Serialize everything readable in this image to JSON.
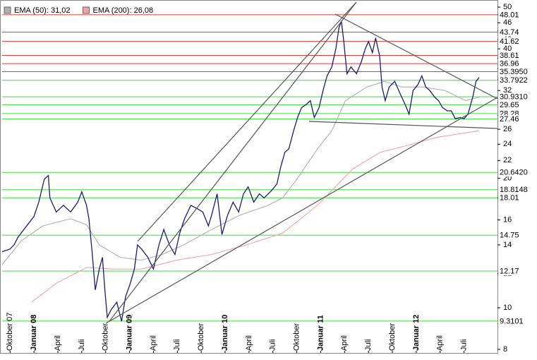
{
  "chart_data": {
    "type": "line",
    "log_scale": true,
    "ylim": [
      8,
      50.4
    ],
    "yticks": [
      8,
      10,
      12,
      14,
      16,
      18,
      20,
      22,
      24,
      26,
      28,
      30,
      32,
      34,
      36,
      38,
      40,
      42,
      44,
      46,
      48,
      50
    ],
    "xlim": [
      -1,
      61.2
    ],
    "xticks": [
      {
        "value": 0,
        "label": "Oktober 07"
      },
      {
        "value": 3,
        "label": "Januar 08"
      },
      {
        "value": 6,
        "label": "April"
      },
      {
        "value": 9,
        "label": "Juli"
      },
      {
        "value": 12,
        "label": "Oktober"
      },
      {
        "value": 15,
        "label": "Januar 09"
      },
      {
        "value": 18,
        "label": "April"
      },
      {
        "value": 21,
        "label": "Juli"
      },
      {
        "value": 24,
        "label": "Oktober"
      },
      {
        "value": 27,
        "label": "Januar 10"
      },
      {
        "value": 30,
        "label": "April"
      },
      {
        "value": 33,
        "label": "Juli"
      },
      {
        "value": 36,
        "label": "Oktober"
      },
      {
        "value": 39,
        "label": "Januar 11"
      },
      {
        "value": 42,
        "label": "April"
      },
      {
        "value": 45,
        "label": "Juli"
      },
      {
        "value": 48,
        "label": "Oktober"
      },
      {
        "value": 51,
        "label": "Januar 12"
      },
      {
        "value": 54,
        "label": "April"
      },
      {
        "value": 57,
        "label": "Juli"
      }
    ],
    "levels": [
      {
        "value": 48.01,
        "label": "48.01",
        "color": "#e03a3a"
      },
      {
        "value": 43.74,
        "label": "43.74",
        "color": "#e03a3a"
      },
      {
        "value": 41.62,
        "label": "41.62",
        "color": "#e03a3a"
      },
      {
        "value": 38.61,
        "label": "38.61",
        "color": "#e03a3a"
      },
      {
        "value": 36.96,
        "label": "36.96",
        "color": "#e03a3a"
      },
      {
        "value": 35.395,
        "label": "35.3950",
        "color": "#e03a3a"
      },
      {
        "value": 33.7922,
        "label": "33.7922",
        "color": "#3ade3a"
      },
      {
        "value": 30.931,
        "label": "30.9310",
        "color": "#3ade3a"
      },
      {
        "value": 29.65,
        "label": "29.65",
        "color": "#3ade3a"
      },
      {
        "value": 28.28,
        "label": "28.28",
        "color": "#3ade3a"
      },
      {
        "value": 27.46,
        "label": "27.46",
        "color": "#3ade3a"
      },
      {
        "value": 20.642,
        "label": "20.6420",
        "color": "#3ade3a"
      },
      {
        "value": 18.8148,
        "label": "18.8148",
        "color": "#3ade3a"
      },
      {
        "value": 18.01,
        "label": "18.01",
        "color": "#3ade3a"
      },
      {
        "value": 14.75,
        "label": "14.75",
        "color": "#3ade3a"
      },
      {
        "value": 12.17,
        "label": "12.17",
        "color": "#3ade3a"
      },
      {
        "value": 9.3101,
        "label": "9.3101",
        "color": "#3ade3a"
      }
    ],
    "series": [
      {
        "name": "EMA (50): 31,02",
        "color": "#b0b0b0",
        "x": [
          -1,
          1.4,
          4.1,
          7.6,
          9.6,
          11.2,
          13.8,
          16.5,
          19.1,
          21.8,
          25.3,
          28.8,
          32.4,
          34.2,
          36,
          38.6,
          40.4,
          42.1,
          44.8,
          47,
          49.2,
          51.9,
          54.6,
          57.2,
          59
        ],
        "values": [
          12.6,
          14.3,
          15.5,
          16.1,
          15.6,
          14.0,
          13.1,
          12.9,
          13.3,
          14.0,
          15.2,
          16.4,
          17.3,
          18.0,
          19.9,
          23.4,
          25.8,
          30.3,
          32.6,
          33.6,
          32.6,
          32.6,
          32.0,
          30.3,
          30.9
        ]
      },
      {
        "name": "EMA (200): 26,08",
        "color": "#f4a3a3",
        "x": [
          2.7,
          5.8,
          9.6,
          12.9,
          16.5,
          20.9,
          25.3,
          29.7,
          34.2,
          38.6,
          43,
          46.5,
          50.1,
          53.6,
          58.9
        ],
        "values": [
          10.3,
          11.4,
          12.4,
          12.3,
          12.3,
          12.9,
          13.3,
          14.0,
          14.9,
          17.3,
          21.0,
          23.0,
          23.9,
          24.9,
          25.8
        ]
      },
      {
        "color": "#1c1c70",
        "x": [
          -1,
          0,
          0.5,
          1,
          3,
          3.6,
          4.3,
          4.8,
          5,
          5.8,
          6.7,
          7.6,
          8.5,
          9,
          9.6,
          9.9,
          10.3,
          10.7,
          11.2,
          11.6,
          11.9,
          12.2,
          12.7,
          13.4,
          14,
          14.5,
          15.1,
          15.6,
          16,
          16.5,
          17.3,
          18,
          18.7,
          19.3,
          20,
          20.7,
          21.3,
          21.9,
          22.7,
          23.5,
          24.2,
          24.9,
          25.3,
          26,
          26.6,
          27.3,
          28,
          28.7,
          29.3,
          29.9,
          30.6,
          31.3,
          31.9,
          32.8,
          33.5,
          34,
          34.5,
          35,
          35.6,
          36.1,
          36.6,
          37.2,
          37.7,
          38.2,
          38.8,
          39.3,
          39.8,
          40.4,
          40.9,
          41.3,
          41.6,
          41.9,
          42.3,
          42.8,
          43.5,
          44.1,
          44.6,
          45,
          45.5,
          45.9,
          46.4,
          46.7,
          47.1,
          47.6,
          48.3,
          49,
          49.6,
          50.1,
          50.6,
          51.2,
          51.7,
          52.2,
          52.7,
          53.3,
          53.8,
          54.3,
          54.9,
          55.4,
          55.9,
          56.5,
          57,
          57.5,
          58.1,
          58.5,
          58.9
        ],
        "values": [
          13.5,
          13.7,
          14.0,
          14.6,
          16.3,
          17.6,
          19.9,
          20.3,
          18.0,
          16.7,
          17.3,
          16.7,
          17.6,
          18.6,
          17.3,
          16.1,
          13.5,
          11.0,
          12.3,
          13.1,
          11.0,
          9.5,
          9.9,
          10.3,
          9.3,
          10.6,
          11.4,
          12.3,
          14.0,
          13.7,
          13.1,
          12.3,
          14.0,
          15.2,
          14.0,
          13.3,
          14.9,
          16.1,
          17.3,
          17.0,
          16.7,
          15.5,
          16.4,
          18.4,
          14.8,
          16.4,
          17.6,
          16.7,
          18.4,
          19.1,
          17.6,
          18.4,
          18.0,
          18.7,
          19.4,
          21.3,
          23.0,
          23.4,
          25.8,
          27.7,
          29.2,
          29.7,
          30.3,
          27.7,
          29.2,
          32.0,
          34.6,
          36.3,
          40.0,
          44.8,
          46.4,
          41.6,
          35.0,
          36.3,
          35.0,
          37.3,
          40.0,
          41.6,
          39.2,
          42.4,
          38.5,
          32.6,
          30.3,
          32.6,
          33.6,
          31.4,
          29.7,
          28.2,
          32.0,
          33.0,
          34.6,
          32.6,
          32.0,
          30.9,
          30.3,
          29.2,
          28.7,
          28.7,
          27.5,
          27.7,
          27.5,
          28.2,
          30.9,
          33.6,
          34.3
        ]
      }
    ]
  }
}
